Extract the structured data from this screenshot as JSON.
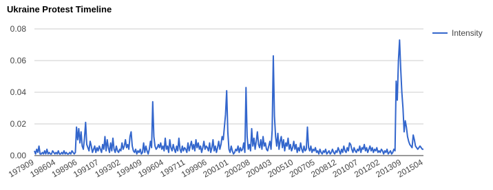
{
  "chart_data": {
    "type": "line",
    "title": "Ukraine Protest Timeline",
    "categories": [
      "197909",
      null,
      null,
      null,
      null,
      null,
      null,
      null,
      null,
      null,
      null,
      null,
      null,
      null,
      null,
      null,
      null,
      null,
      null,
      "198604",
      null,
      null,
      null,
      null,
      null,
      null,
      null,
      null,
      null,
      null,
      null,
      null,
      null,
      null,
      null,
      null,
      null,
      null,
      "198906",
      null,
      null,
      null,
      null,
      null,
      null,
      null,
      null,
      null,
      null,
      null,
      null,
      null,
      null,
      null,
      null,
      null,
      null,
      "199107",
      null,
      null,
      null,
      null,
      null,
      null,
      null,
      null,
      null,
      null,
      null,
      null,
      null,
      null,
      null,
      null,
      null,
      null,
      "199302",
      null,
      null,
      null,
      null,
      null,
      null,
      null,
      null,
      null,
      null,
      null,
      null,
      null,
      null,
      null,
      null,
      null,
      null,
      "199409",
      null,
      null,
      null,
      null,
      null,
      null,
      null,
      null,
      null,
      null,
      null,
      null,
      null,
      null,
      null,
      null,
      null,
      null,
      "199604",
      null,
      null,
      null,
      null,
      null,
      null,
      null,
      null,
      null,
      null,
      null,
      null,
      null,
      null,
      null,
      null,
      null,
      null,
      "199711",
      null,
      null,
      null,
      null,
      null,
      null,
      null,
      null,
      null,
      null,
      null,
      null,
      null,
      null,
      null,
      null,
      null,
      null,
      "199906",
      null,
      null,
      null,
      null,
      null,
      null,
      null,
      null,
      null,
      null,
      null,
      null,
      null,
      null,
      null,
      null,
      null,
      null,
      "200101",
      null,
      null,
      null,
      null,
      null,
      null,
      null,
      null,
      null,
      null,
      null,
      null,
      null,
      null,
      null,
      null,
      null,
      null,
      "200208",
      null,
      null,
      null,
      null,
      null,
      null,
      null,
      null,
      null,
      null,
      null,
      null,
      null,
      null,
      null,
      null,
      null,
      null,
      "200403",
      null,
      null,
      null,
      null,
      null,
      null,
      null,
      null,
      null,
      null,
      null,
      null,
      null,
      null,
      null,
      null,
      null,
      null,
      "200510",
      null,
      null,
      null,
      null,
      null,
      null,
      null,
      null,
      null,
      null,
      null,
      null,
      null,
      null,
      null,
      null,
      null,
      null,
      "200705",
      null,
      null,
      null,
      null,
      null,
      null,
      null,
      null,
      null,
      null,
      null,
      null,
      null,
      null,
      null,
      null,
      null,
      null,
      "200812",
      null,
      null,
      null,
      null,
      null,
      null,
      null,
      null,
      null,
      null,
      null,
      null,
      null,
      null,
      null,
      null,
      null,
      null,
      "201007",
      null,
      null,
      null,
      null,
      null,
      null,
      null,
      null,
      null,
      null,
      null,
      null,
      null,
      null,
      null,
      null,
      null,
      null,
      "201202",
      null,
      null,
      null,
      null,
      null,
      null,
      null,
      null,
      null,
      null,
      null,
      null,
      null,
      null,
      null,
      null,
      null,
      null,
      "201309",
      null,
      null,
      null,
      null,
      null,
      null,
      null,
      null,
      null,
      null,
      null,
      null,
      null,
      null,
      null,
      null,
      null,
      null,
      "201504"
    ],
    "series": [
      {
        "name": "Intensity",
        "color": "#3366cc",
        "values": [
          0.003,
          0.001,
          0.004,
          0.002,
          0.006,
          0.001,
          0.001,
          0.002,
          0.001,
          0.003,
          0.001,
          0.004,
          0.001,
          0.002,
          0.001,
          0.001,
          0.003,
          0.002,
          0.001,
          0.002,
          0.001,
          0.003,
          0.001,
          0.001,
          0.002,
          0.001,
          0.003,
          0.001,
          0.002,
          0.001,
          0.001,
          0.002,
          0.001,
          0.003,
          0.002,
          0.001,
          0.002,
          0.018,
          0.01,
          0.017,
          0.008,
          0.015,
          0.006,
          0.004,
          0.011,
          0.021,
          0.007,
          0.005,
          0.003,
          0.009,
          0.006,
          0.002,
          0.004,
          0.006,
          0.002,
          0.005,
          0.003,
          0.006,
          0.004,
          0.002,
          0.007,
          0.004,
          0.012,
          0.003,
          0.01,
          0.005,
          0.002,
          0.008,
          0.003,
          0.011,
          0.004,
          0.002,
          0.006,
          0.003,
          0.002,
          0.004,
          0.003,
          0.008,
          0.004,
          0.006,
          0.01,
          0.005,
          0.007,
          0.004,
          0.012,
          0.015,
          0.006,
          0.003,
          0.002,
          0.004,
          0.001,
          0.003,
          0.002,
          0.004,
          0.001,
          0.002,
          0.008,
          0.002,
          0.006,
          0.003,
          0.001,
          0.004,
          0.009,
          0.005,
          0.034,
          0.012,
          0.006,
          0.004,
          0.005,
          0.007,
          0.005,
          0.008,
          0.004,
          0.006,
          0.003,
          0.011,
          0.004,
          0.006,
          0.002,
          0.01,
          0.005,
          0.003,
          0.007,
          0.004,
          0.002,
          0.006,
          0.003,
          0.011,
          0.004,
          0.002,
          0.006,
          0.003,
          0.005,
          0.004,
          0.002,
          0.008,
          0.003,
          0.006,
          0.009,
          0.004,
          0.007,
          0.003,
          0.01,
          0.005,
          0.008,
          0.004,
          0.006,
          0.002,
          0.005,
          0.009,
          0.004,
          0.006,
          0.005,
          0.003,
          0.008,
          0.002,
          0.005,
          0.01,
          0.003,
          0.006,
          0.002,
          0.005,
          0.009,
          0.004,
          0.007,
          0.012,
          0.01,
          0.018,
          0.026,
          0.041,
          0.015,
          0.004,
          0.002,
          0.006,
          0.003,
          0.001,
          0.002,
          0.004,
          0.003,
          0.006,
          0.002,
          0.005,
          0.003,
          0.004,
          0.008,
          0.002,
          0.043,
          0.012,
          0.004,
          0.007,
          0.003,
          0.017,
          0.006,
          0.011,
          0.004,
          0.009,
          0.015,
          0.007,
          0.005,
          0.01,
          0.004,
          0.012,
          0.006,
          0.008,
          0.004,
          0.003,
          0.006,
          0.009,
          0.004,
          0.016,
          0.063,
          0.025,
          0.012,
          0.006,
          0.014,
          0.004,
          0.009,
          0.012,
          0.005,
          0.01,
          0.003,
          0.008,
          0.006,
          0.011,
          0.004,
          0.007,
          0.003,
          0.005,
          0.009,
          0.004,
          0.007,
          0.002,
          0.005,
          0.003,
          0.008,
          0.004,
          0.002,
          0.006,
          0.003,
          0.004,
          0.018,
          0.005,
          0.003,
          0.006,
          0.002,
          0.004,
          0.003,
          0.005,
          0.002,
          0.003,
          0.001,
          0.004,
          0.002,
          0.001,
          0.003,
          0.002,
          0.004,
          0.001,
          0.002,
          0.003,
          0.001,
          0.002,
          0.004,
          0.002,
          0.001,
          0.003,
          0.002,
          0.005,
          0.003,
          0.001,
          0.004,
          0.002,
          0.006,
          0.003,
          0.002,
          0.005,
          0.003,
          0.008,
          0.007,
          0.004,
          0.002,
          0.005,
          0.003,
          0.002,
          0.004,
          0.003,
          0.006,
          0.002,
          0.005,
          0.004,
          0.007,
          0.003,
          0.005,
          0.002,
          0.004,
          0.006,
          0.003,
          0.005,
          0.002,
          0.004,
          0.003,
          0.005,
          0.002,
          0.003,
          0.002,
          0.004,
          0.003,
          0.001,
          0.003,
          0.002,
          0.004,
          0.001,
          0.002,
          0.003,
          0.001,
          0.002,
          0.004,
          0.003,
          0.047,
          0.035,
          0.06,
          0.073,
          0.055,
          0.04,
          0.03,
          0.015,
          0.022,
          0.018,
          0.012,
          0.009,
          0.007,
          0.006,
          0.005,
          0.013,
          0.01,
          0.006,
          0.005,
          0.004,
          0.005,
          0.006,
          0.005,
          0.004,
          0.004
        ]
      }
    ],
    "ylim": [
      0,
      0.08
    ],
    "yticks": [
      {
        "value": 0,
        "label": "0.00"
      },
      {
        "value": 0.02,
        "label": "0.02"
      },
      {
        "value": 0.04,
        "label": "0.04"
      },
      {
        "value": 0.06,
        "label": "0.06"
      },
      {
        "value": 0.08,
        "label": "0.08"
      }
    ],
    "grid": true,
    "legend": "right"
  }
}
